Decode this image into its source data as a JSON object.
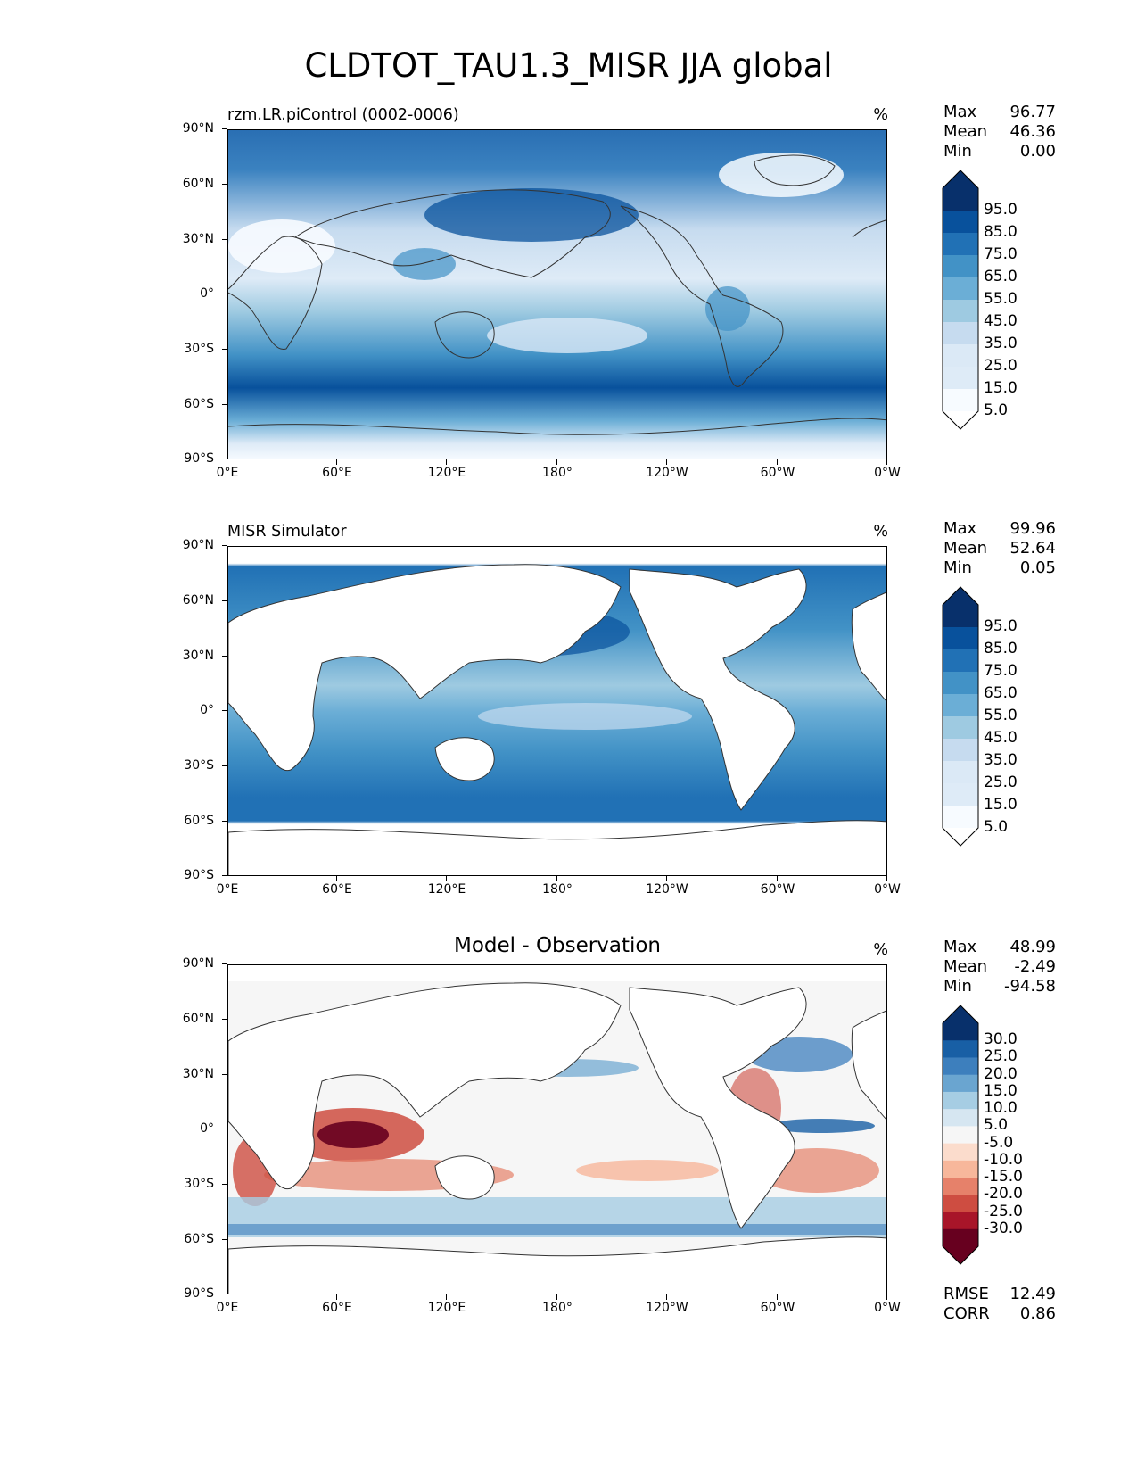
{
  "title": "CLDTOT_TAU1.3_MISR JJA global",
  "axes": {
    "lat_ticks": [
      "90°N",
      "60°N",
      "30°N",
      "0°",
      "30°S",
      "60°S",
      "90°S"
    ],
    "lon_ticks": [
      "0°E",
      "60°E",
      "120°E",
      "180°",
      "120°W",
      "60°W",
      "0°W"
    ]
  },
  "panels": [
    {
      "id": "test",
      "title": "rzm.LR.piControl (0002-0006)",
      "units": "%",
      "stats": [
        {
          "label": "Max",
          "value": "96.77"
        },
        {
          "label": "Mean",
          "value": "46.36"
        },
        {
          "label": "Min",
          "value": "0.00"
        }
      ],
      "colorbar": {
        "labels": [
          "95.0",
          "85.0",
          "75.0",
          "65.0",
          "55.0",
          "45.0",
          "35.0",
          "25.0",
          "15.0",
          "5.0"
        ],
        "colors": [
          "#08306b",
          "#08519c",
          "#2171b5",
          "#4292c6",
          "#6baed6",
          "#9ecae1",
          "#c6dbef",
          "#dbe9f6",
          "#deebf7",
          "#f7fbff"
        ],
        "extend_top": "#08306b",
        "extend_bottom": "#ffffff"
      }
    },
    {
      "id": "ref",
      "title": "MISR Simulator",
      "units": "%",
      "stats": [
        {
          "label": "Max",
          "value": "99.96"
        },
        {
          "label": "Mean",
          "value": "52.64"
        },
        {
          "label": "Min",
          "value": "0.05"
        }
      ],
      "colorbar": {
        "labels": [
          "95.0",
          "85.0",
          "75.0",
          "65.0",
          "55.0",
          "45.0",
          "35.0",
          "25.0",
          "15.0",
          "5.0"
        ],
        "colors": [
          "#08306b",
          "#08519c",
          "#2171b5",
          "#4292c6",
          "#6baed6",
          "#9ecae1",
          "#c6dbef",
          "#dbe9f6",
          "#deebf7",
          "#f7fbff"
        ],
        "extend_top": "#08306b",
        "extend_bottom": "#ffffff"
      }
    },
    {
      "id": "diff",
      "title": "Model - Observation",
      "units": "%",
      "stats": [
        {
          "label": "Max",
          "value": "48.99"
        },
        {
          "label": "Mean",
          "value": "-2.49"
        },
        {
          "label": "Min",
          "value": "-94.58"
        }
      ],
      "extra_stats": [
        {
          "label": "RMSE",
          "value": "12.49"
        },
        {
          "label": "CORR",
          "value": "0.86"
        }
      ],
      "colorbar": {
        "labels": [
          "30.0",
          "25.0",
          "20.0",
          "15.0",
          "10.0",
          "5.0",
          "-5.0",
          "-10.0",
          "-15.0",
          "-20.0",
          "-25.0",
          "-30.0"
        ],
        "colors": [
          "#08306b",
          "#185fa5",
          "#3d7fbd",
          "#6aa5d0",
          "#a6cde3",
          "#d6e6f1",
          "#f6f6f6",
          "#fbdccc",
          "#f7b79b",
          "#e6816a",
          "#ce4d41",
          "#a81529",
          "#67001f"
        ],
        "extend_top": "#08306b",
        "extend_bottom": "#67001f"
      }
    }
  ]
}
